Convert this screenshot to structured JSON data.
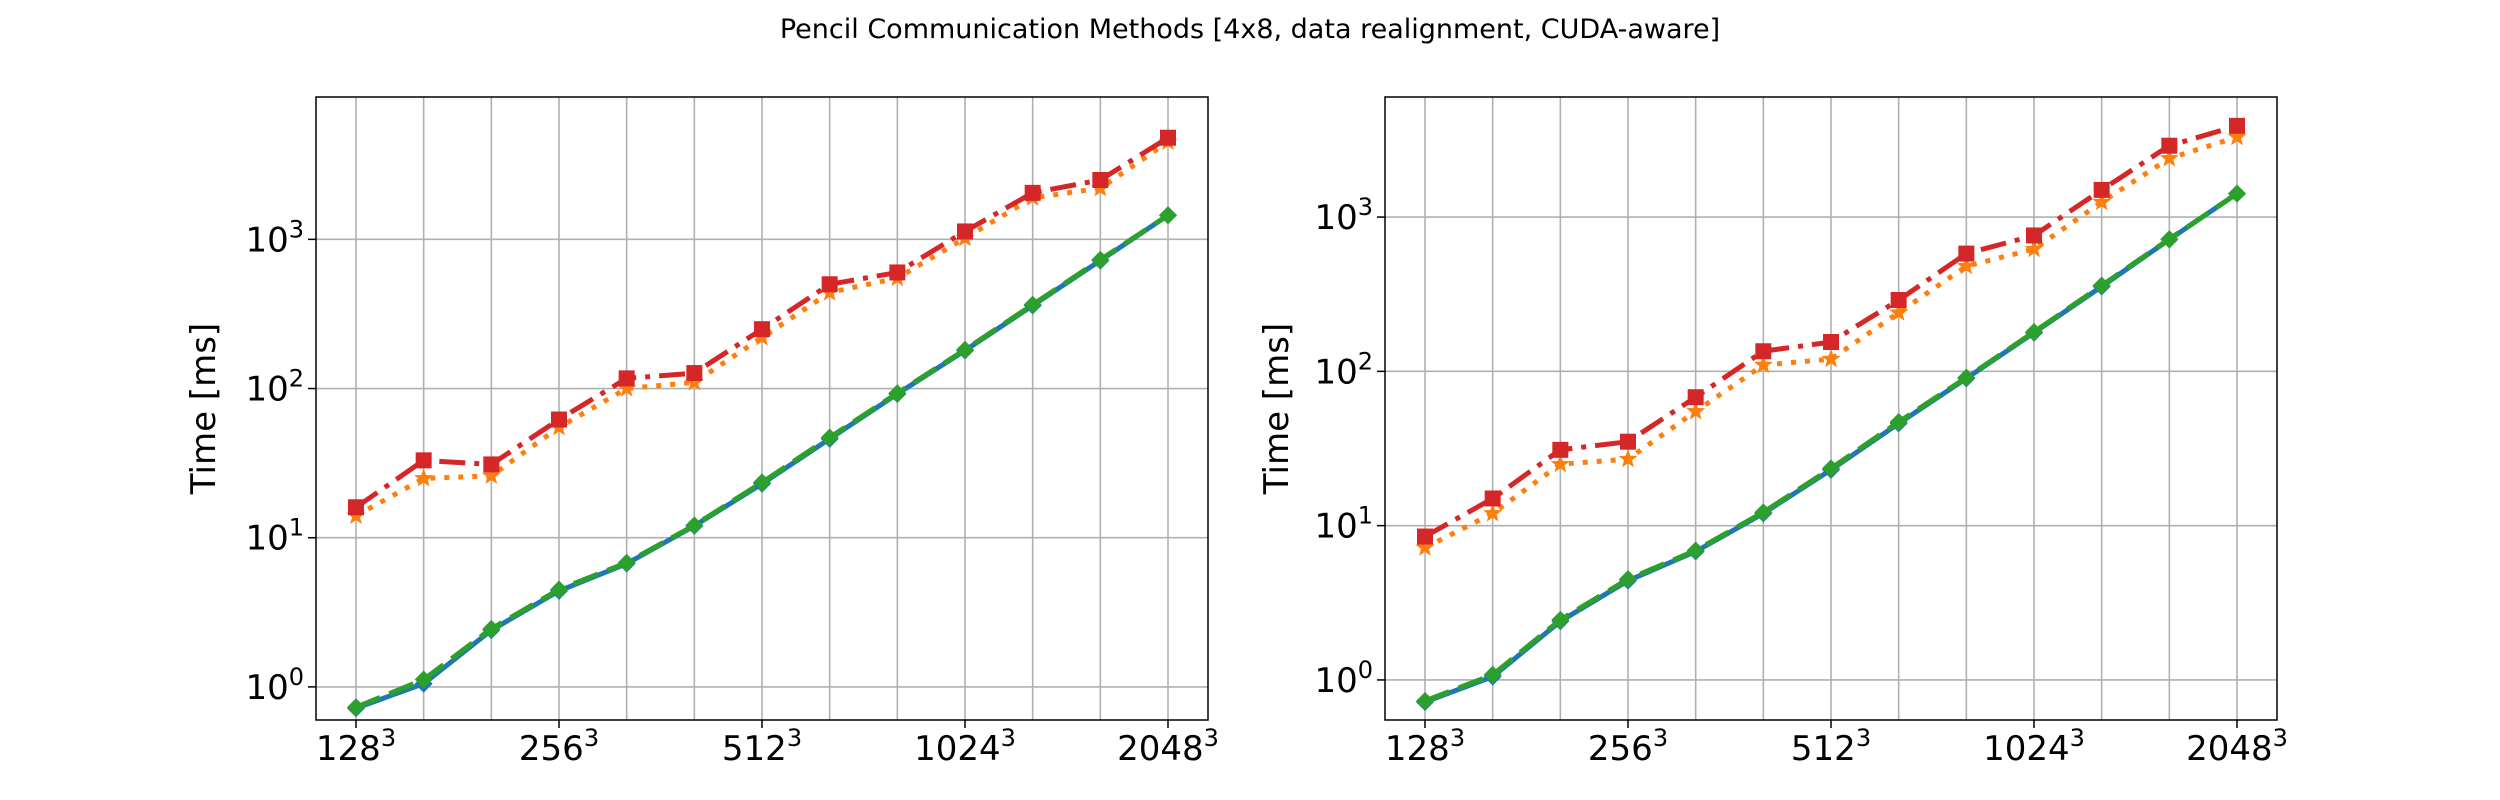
{
  "figure": {
    "title": "Pencil Communication Methods [4x8, data realignment, CUDA-aware]"
  },
  "colors": {
    "series_blue": "#1f77b4",
    "series_orange": "#ff7f0e",
    "series_green": "#2ca02c",
    "series_red": "#d62728",
    "grid": "#b0b0b0",
    "axes": "#000000"
  },
  "chart_data": [
    {
      "type": "line",
      "ylabel": "Time [ms]",
      "xlabel": "",
      "yscale": "log",
      "ylim": [
        0.6,
        9000
      ],
      "grid": true,
      "x_ticks": [
        {
          "base": "128",
          "exp": "3"
        },
        {
          "base": "256",
          "exp": "3"
        },
        {
          "base": "512",
          "exp": "3"
        },
        {
          "base": "1024",
          "exp": "3"
        },
        {
          "base": "2048",
          "exp": "3"
        }
      ],
      "y_ticks": [
        {
          "base": "10",
          "exp": "0",
          "value": 1
        },
        {
          "base": "10",
          "exp": "1",
          "value": 10
        },
        {
          "base": "10",
          "exp": "2",
          "value": 100
        },
        {
          "base": "10",
          "exp": "3",
          "value": 1000
        }
      ],
      "x_positions": 13,
      "series": [
        {
          "color": "#1f77b4",
          "style": "solid",
          "marker": "diamond",
          "values": [
            0.72,
            1.05,
            2.4,
            4.4,
            6.7,
            12,
            23,
            46,
            92,
            180,
            360,
            720,
            1450
          ]
        },
        {
          "color": "#2ca02c",
          "style": "dashed",
          "marker": "diamond",
          "values": [
            0.73,
            1.12,
            2.45,
            4.5,
            6.8,
            12.1,
            23.5,
            47,
            93,
            182,
            365,
            730,
            1450
          ]
        },
        {
          "color": "#ff7f0e",
          "style": "dotted",
          "marker": "star",
          "values": [
            14,
            25,
            26,
            55,
            100,
            110,
            220,
            440,
            550,
            1020,
            1900,
            2200,
            4500
          ]
        },
        {
          "color": "#d62728",
          "style": "dashdot",
          "marker": "square",
          "values": [
            16,
            33,
            31,
            62,
            117,
            127,
            250,
            500,
            600,
            1130,
            2050,
            2500,
            4800
          ]
        }
      ]
    },
    {
      "type": "line",
      "ylabel": "Time [ms]",
      "xlabel": "",
      "yscale": "log",
      "ylim": [
        0.55,
        6000
      ],
      "grid": true,
      "x_ticks": [
        {
          "base": "128",
          "exp": "3"
        },
        {
          "base": "256",
          "exp": "3"
        },
        {
          "base": "512",
          "exp": "3"
        },
        {
          "base": "1024",
          "exp": "3"
        },
        {
          "base": "2048",
          "exp": "3"
        }
      ],
      "y_ticks": [
        {
          "base": "10",
          "exp": "0",
          "value": 1
        },
        {
          "base": "10",
          "exp": "1",
          "value": 10
        },
        {
          "base": "10",
          "exp": "2",
          "value": 100
        },
        {
          "base": "10",
          "exp": "3",
          "value": 1000
        }
      ],
      "x_positions": 13,
      "series": [
        {
          "color": "#1f77b4",
          "style": "solid",
          "marker": "diamond",
          "values": [
            0.72,
            1.05,
            2.4,
            4.4,
            6.8,
            12,
            23,
            46,
            90,
            178,
            355,
            715,
            1420
          ]
        },
        {
          "color": "#2ca02c",
          "style": "dashed",
          "marker": "diamond",
          "values": [
            0.73,
            1.08,
            2.45,
            4.5,
            6.9,
            12.2,
            23.5,
            47,
            91,
            180,
            360,
            720,
            1420
          ]
        },
        {
          "color": "#ff7f0e",
          "style": "dotted",
          "marker": "star",
          "values": [
            7.2,
            12,
            25,
            27,
            55,
            110,
            120,
            240,
            480,
            620,
            1250,
            2400,
            3300
          ]
        },
        {
          "color": "#d62728",
          "style": "dashdot",
          "marker": "square",
          "values": [
            8.5,
            15,
            31,
            35,
            68,
            135,
            155,
            290,
            580,
            760,
            1500,
            2900,
            3900
          ]
        }
      ]
    }
  ]
}
